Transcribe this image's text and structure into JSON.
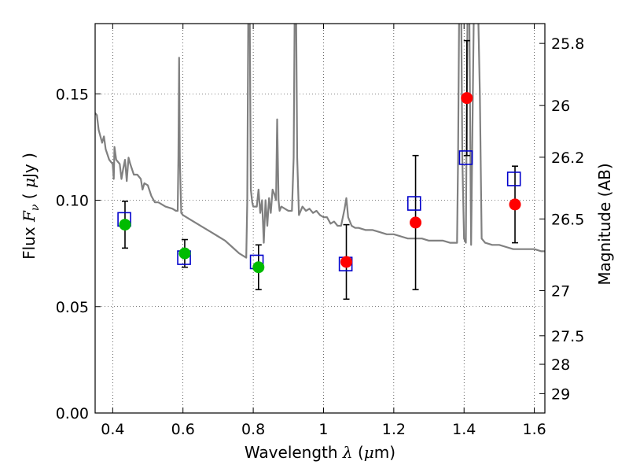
{
  "chart_data": {
    "type": "scatter",
    "xlabel_parts": [
      "Wavelength  ",
      "λ",
      " (",
      "μ",
      "m)"
    ],
    "ylabel_parts": [
      "Flux  ",
      "F",
      "ν",
      "  ( ",
      "μ",
      "Jy )"
    ],
    "y2label": "Magnitude (AB)",
    "xlim": [
      0.35,
      1.63
    ],
    "ylim": [
      0.0,
      0.183
    ],
    "grid": true,
    "x_ticks": [
      0.4,
      0.6,
      0.8,
      1.0,
      1.2,
      1.4,
      1.6
    ],
    "x_tick_labels": [
      "0.4",
      "0.6",
      "0.8",
      "1",
      "1.2",
      "1.4",
      "1.6"
    ],
    "y_ticks": [
      0.0,
      0.05,
      0.1,
      0.15
    ],
    "y_tick_labels": [
      "0.00",
      "0.05",
      "0.10",
      "0.15"
    ],
    "y2_ticks": [
      {
        "label": "25.8",
        "flux": 0.1737
      },
      {
        "label": "26",
        "flux": 0.1445
      },
      {
        "label": "26.2",
        "flux": 0.1202
      },
      {
        "label": "26.5",
        "flux": 0.0912
      },
      {
        "label": "27",
        "flux": 0.0575
      },
      {
        "label": "27.5",
        "flux": 0.0363
      },
      {
        "label": "28",
        "flux": 0.0229
      },
      {
        "label": "29",
        "flux": 0.0091
      }
    ],
    "colors": {
      "spectrum": "#808080",
      "green_points": "#00bb00",
      "red_points": "#ff0000",
      "model_boxes": "#0000cc",
      "error_bars": "#000000"
    },
    "spectrum": [
      [
        0.35,
        0.141
      ],
      [
        0.355,
        0.14
      ],
      [
        0.36,
        0.133
      ],
      [
        0.37,
        0.127
      ],
      [
        0.375,
        0.13
      ],
      [
        0.38,
        0.124
      ],
      [
        0.39,
        0.119
      ],
      [
        0.4,
        0.117
      ],
      [
        0.403,
        0.11
      ],
      [
        0.405,
        0.125
      ],
      [
        0.41,
        0.119
      ],
      [
        0.42,
        0.117
      ],
      [
        0.425,
        0.11
      ],
      [
        0.43,
        0.115
      ],
      [
        0.435,
        0.119
      ],
      [
        0.44,
        0.109
      ],
      [
        0.445,
        0.12
      ],
      [
        0.45,
        0.117
      ],
      [
        0.46,
        0.112
      ],
      [
        0.47,
        0.112
      ],
      [
        0.48,
        0.11
      ],
      [
        0.485,
        0.105
      ],
      [
        0.49,
        0.108
      ],
      [
        0.5,
        0.107
      ],
      [
        0.51,
        0.102
      ],
      [
        0.52,
        0.099
      ],
      [
        0.53,
        0.099
      ],
      [
        0.55,
        0.097
      ],
      [
        0.57,
        0.096
      ],
      [
        0.58,
        0.095
      ],
      [
        0.585,
        0.095
      ],
      [
        0.587,
        0.12
      ],
      [
        0.589,
        0.167
      ],
      [
        0.591,
        0.12
      ],
      [
        0.595,
        0.094
      ],
      [
        0.6,
        0.093
      ],
      [
        0.62,
        0.091
      ],
      [
        0.64,
        0.089
      ],
      [
        0.66,
        0.087
      ],
      [
        0.68,
        0.085
      ],
      [
        0.7,
        0.083
      ],
      [
        0.72,
        0.081
      ],
      [
        0.74,
        0.078
      ],
      [
        0.76,
        0.075
      ],
      [
        0.77,
        0.074
      ],
      [
        0.78,
        0.073
      ],
      [
        0.783,
        0.1
      ],
      [
        0.786,
        0.19
      ],
      [
        0.79,
        0.19
      ],
      [
        0.793,
        0.105
      ],
      [
        0.797,
        0.099
      ],
      [
        0.8,
        0.097
      ],
      [
        0.81,
        0.097
      ],
      [
        0.815,
        0.105
      ],
      [
        0.82,
        0.094
      ],
      [
        0.825,
        0.1
      ],
      [
        0.83,
        0.08
      ],
      [
        0.835,
        0.1
      ],
      [
        0.84,
        0.088
      ],
      [
        0.845,
        0.101
      ],
      [
        0.85,
        0.094
      ],
      [
        0.855,
        0.105
      ],
      [
        0.86,
        0.103
      ],
      [
        0.865,
        0.1
      ],
      [
        0.868,
        0.138
      ],
      [
        0.872,
        0.1
      ],
      [
        0.875,
        0.095
      ],
      [
        0.88,
        0.097
      ],
      [
        0.89,
        0.096
      ],
      [
        0.9,
        0.095
      ],
      [
        0.91,
        0.095
      ],
      [
        0.915,
        0.12
      ],
      [
        0.918,
        0.19
      ],
      [
        0.922,
        0.19
      ],
      [
        0.925,
        0.12
      ],
      [
        0.93,
        0.093
      ],
      [
        0.94,
        0.097
      ],
      [
        0.95,
        0.095
      ],
      [
        0.96,
        0.096
      ],
      [
        0.97,
        0.094
      ],
      [
        0.98,
        0.095
      ],
      [
        0.99,
        0.093
      ],
      [
        1.0,
        0.092
      ],
      [
        1.01,
        0.092
      ],
      [
        1.02,
        0.089
      ],
      [
        1.03,
        0.09
      ],
      [
        1.04,
        0.088
      ],
      [
        1.05,
        0.088
      ],
      [
        1.06,
        0.096
      ],
      [
        1.065,
        0.101
      ],
      [
        1.07,
        0.092
      ],
      [
        1.08,
        0.088
      ],
      [
        1.09,
        0.087
      ],
      [
        1.1,
        0.087
      ],
      [
        1.12,
        0.086
      ],
      [
        1.14,
        0.086
      ],
      [
        1.16,
        0.085
      ],
      [
        1.18,
        0.084
      ],
      [
        1.2,
        0.084
      ],
      [
        1.22,
        0.083
      ],
      [
        1.24,
        0.082
      ],
      [
        1.26,
        0.082
      ],
      [
        1.28,
        0.082
      ],
      [
        1.3,
        0.081
      ],
      [
        1.32,
        0.081
      ],
      [
        1.34,
        0.081
      ],
      [
        1.36,
        0.08
      ],
      [
        1.38,
        0.08
      ],
      [
        1.383,
        0.12
      ],
      [
        1.386,
        0.19
      ],
      [
        1.392,
        0.19
      ],
      [
        1.395,
        0.12
      ],
      [
        1.4,
        0.082
      ],
      [
        1.405,
        0.08
      ],
      [
        1.408,
        0.15
      ],
      [
        1.41,
        0.19
      ],
      [
        1.415,
        0.19
      ],
      [
        1.418,
        0.12
      ],
      [
        1.42,
        0.079
      ],
      [
        1.425,
        0.15
      ],
      [
        1.428,
        0.19
      ],
      [
        1.44,
        0.19
      ],
      [
        1.445,
        0.15
      ],
      [
        1.45,
        0.082
      ],
      [
        1.46,
        0.08
      ],
      [
        1.48,
        0.079
      ],
      [
        1.5,
        0.079
      ],
      [
        1.52,
        0.078
      ],
      [
        1.54,
        0.077
      ],
      [
        1.56,
        0.077
      ],
      [
        1.58,
        0.077
      ],
      [
        1.6,
        0.077
      ],
      [
        1.62,
        0.076
      ],
      [
        1.63,
        0.076
      ]
    ],
    "series": [
      {
        "marker": "green-circle",
        "points": [
          {
            "x": 0.435,
            "y": 0.0885,
            "err": 0.011
          },
          {
            "x": 0.605,
            "y": 0.075,
            "err": 0.0065
          },
          {
            "x": 0.815,
            "y": 0.0685,
            "err": 0.0105
          }
        ]
      },
      {
        "marker": "red-circle",
        "points": [
          {
            "x": 1.065,
            "y": 0.071,
            "err": 0.0175
          },
          {
            "x": 1.262,
            "y": 0.0895,
            "err": 0.0315
          },
          {
            "x": 1.408,
            "y": 0.148,
            "err": 0.027
          },
          {
            "x": 1.545,
            "y": 0.098,
            "err": 0.018
          }
        ]
      },
      {
        "marker": "blue-square",
        "points": [
          {
            "x": 0.433,
            "y": 0.091
          },
          {
            "x": 0.603,
            "y": 0.073
          },
          {
            "x": 0.81,
            "y": 0.071
          },
          {
            "x": 1.063,
            "y": 0.07
          },
          {
            "x": 1.258,
            "y": 0.0985
          },
          {
            "x": 1.405,
            "y": 0.12
          },
          {
            "x": 1.542,
            "y": 0.11
          }
        ]
      }
    ]
  }
}
